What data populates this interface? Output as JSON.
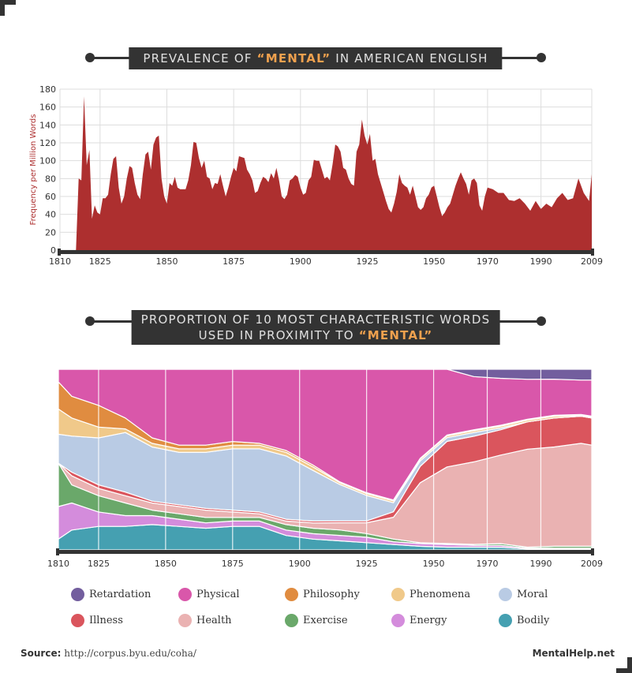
{
  "colors": {
    "dark": "#333333",
    "accent": "#f0a14e",
    "line_area": "#ad2f2f",
    "grid": "#dddddd"
  },
  "chart_data": [
    {
      "type": "area",
      "title_prefix": "PREVALENCE OF ",
      "title_highlight": "“MENTAL”",
      "title_suffix": " IN AMERICAN ENGLISH",
      "ylabel": "Frequency per Million Words",
      "xlim": [
        1810,
        2009
      ],
      "ylim": [
        0,
        180
      ],
      "y_ticks": [
        0,
        20,
        40,
        60,
        80,
        100,
        120,
        140,
        160,
        180
      ],
      "x_ticks": [
        1810,
        1825,
        1850,
        1875,
        1900,
        1925,
        1950,
        1970,
        1990,
        2009
      ],
      "grid": true,
      "x": [
        1810,
        1812,
        1814,
        1816,
        1817,
        1818,
        1819,
        1820,
        1821,
        1822,
        1823,
        1824,
        1825,
        1826,
        1827,
        1828,
        1829,
        1830,
        1831,
        1832,
        1833,
        1834,
        1835,
        1836,
        1837,
        1838,
        1839,
        1840,
        1841,
        1842,
        1843,
        1844,
        1845,
        1846,
        1847,
        1848,
        1849,
        1850,
        1851,
        1852,
        1853,
        1854,
        1855,
        1856,
        1857,
        1858,
        1859,
        1860,
        1861,
        1862,
        1863,
        1864,
        1865,
        1866,
        1867,
        1868,
        1869,
        1870,
        1871,
        1872,
        1873,
        1874,
        1875,
        1876,
        1877,
        1878,
        1879,
        1880,
        1881,
        1882,
        1883,
        1884,
        1885,
        1886,
        1887,
        1888,
        1889,
        1890,
        1891,
        1892,
        1893,
        1894,
        1895,
        1896,
        1897,
        1898,
        1899,
        1900,
        1901,
        1902,
        1903,
        1904,
        1905,
        1906,
        1907,
        1908,
        1909,
        1910,
        1911,
        1912,
        1913,
        1914,
        1915,
        1916,
        1917,
        1918,
        1919,
        1920,
        1921,
        1922,
        1923,
        1924,
        1925,
        1926,
        1927,
        1928,
        1929,
        1930,
        1931,
        1932,
        1933,
        1934,
        1935,
        1936,
        1937,
        1938,
        1939,
        1940,
        1941,
        1942,
        1943,
        1944,
        1945,
        1946,
        1947,
        1948,
        1949,
        1950,
        1951,
        1952,
        1953,
        1954,
        1955,
        1956,
        1957,
        1958,
        1959,
        1960,
        1961,
        1962,
        1963,
        1964,
        1965,
        1966,
        1967,
        1968,
        1969,
        1970,
        1972,
        1974,
        1976,
        1978,
        1980,
        1982,
        1984,
        1986,
        1988,
        1990,
        1992,
        1994,
        1996,
        1998,
        2000,
        2002,
        2004,
        2006,
        2008,
        2009
      ],
      "values": [
        0,
        0,
        0,
        0,
        80,
        78,
        172,
        95,
        112,
        35,
        50,
        42,
        40,
        58,
        58,
        62,
        85,
        102,
        105,
        70,
        52,
        60,
        80,
        94,
        92,
        75,
        62,
        57,
        85,
        107,
        110,
        90,
        118,
        126,
        128,
        80,
        60,
        52,
        75,
        72,
        82,
        70,
        68,
        68,
        68,
        78,
        95,
        121,
        120,
        103,
        92,
        100,
        82,
        80,
        68,
        75,
        74,
        85,
        72,
        60,
        70,
        82,
        92,
        88,
        105,
        104,
        103,
        90,
        85,
        78,
        64,
        66,
        75,
        82,
        80,
        76,
        86,
        80,
        92,
        78,
        60,
        57,
        62,
        78,
        80,
        84,
        82,
        70,
        62,
        64,
        78,
        82,
        101,
        100,
        100,
        90,
        80,
        82,
        78,
        96,
        118,
        116,
        110,
        92,
        90,
        80,
        74,
        72,
        110,
        118,
        146,
        128,
        118,
        130,
        100,
        102,
        85,
        75,
        65,
        55,
        46,
        42,
        52,
        65,
        85,
        75,
        72,
        70,
        62,
        72,
        60,
        48,
        45,
        48,
        58,
        62,
        70,
        72,
        60,
        48,
        38,
        42,
        48,
        52,
        62,
        72,
        80,
        87,
        80,
        74,
        62,
        78,
        80,
        75,
        50,
        44,
        60,
        70,
        68,
        64,
        64,
        56,
        55,
        58,
        52,
        44,
        55,
        46,
        52,
        48,
        58,
        64,
        56,
        58,
        80,
        64,
        55,
        85
      ]
    },
    {
      "type": "area",
      "stacked": "percent",
      "title_line1": "PROPORTION OF 10 MOST CHARACTERISTIC WORDS",
      "title_line2_prefix": "USED IN PROXIMITY TO ",
      "title_line2_highlight": "“MENTAL”",
      "xlim": [
        1810,
        2009
      ],
      "ylim": [
        0,
        100
      ],
      "x_ticks": [
        1810,
        1825,
        1850,
        1875,
        1900,
        1925,
        1950,
        1970,
        1990,
        2009
      ],
      "grid": true,
      "legend": "bottom",
      "x": [
        1810,
        1815,
        1825,
        1835,
        1845,
        1855,
        1865,
        1875,
        1885,
        1895,
        1905,
        1915,
        1925,
        1935,
        1945,
        1955,
        1965,
        1975,
        1985,
        1995,
        2005,
        2009
      ],
      "series": [
        {
          "name": "Bodily",
          "color": "#45a0b1",
          "values": [
            6,
            11,
            13,
            13,
            14,
            13,
            12,
            13,
            13,
            8,
            6,
            5,
            4,
            3,
            2,
            1.5,
            1.5,
            1.5,
            0.5,
            0.5,
            0.5,
            0.5
          ]
        },
        {
          "name": "Energy",
          "color": "#d48cdc",
          "values": [
            18,
            15,
            8,
            6,
            5,
            4,
            3,
            3,
            3,
            3,
            3,
            3,
            3,
            1.5,
            1.5,
            1.5,
            1,
            1,
            0.5,
            0.5,
            0.5,
            0.5
          ]
        },
        {
          "name": "Exercise",
          "color": "#6aa86a",
          "values": [
            24,
            10,
            9,
            7,
            3,
            3,
            3,
            2,
            2,
            3,
            3,
            3,
            2,
            1.5,
            0.5,
            0.5,
            0.5,
            1,
            0.5,
            1,
            1,
            1
          ]
        },
        {
          "name": "Health",
          "color": "#eab2b2",
          "values": [
            0,
            5,
            4,
            4,
            4,
            4,
            4,
            3,
            2,
            2,
            3,
            4,
            6,
            12,
            33,
            42,
            45,
            49,
            54,
            55,
            57,
            56
          ]
        },
        {
          "name": "Illness",
          "color": "#da555d",
          "values": [
            0,
            2,
            2,
            2,
            1,
            1,
            1,
            1,
            1,
            1,
            1,
            1,
            1,
            3,
            9,
            14,
            14,
            14,
            15,
            16,
            15,
            15
          ]
        },
        {
          "name": "Moral",
          "color": "#b9cbe4",
          "values": [
            16,
            20,
            26,
            33,
            30,
            29,
            31,
            34,
            35,
            35,
            28,
            20,
            14,
            5,
            3,
            2,
            2,
            1,
            0,
            0,
            0,
            0
          ]
        },
        {
          "name": "Phenomena",
          "color": "#f0c98a",
          "values": [
            14,
            10,
            6,
            2,
            2,
            2,
            2,
            2,
            2,
            2,
            2,
            1,
            1,
            1,
            1,
            1,
            1,
            1,
            1,
            1,
            0.5,
            0.5
          ]
        },
        {
          "name": "Philosophy",
          "color": "#e08c40",
          "values": [
            15,
            12,
            12,
            6,
            3,
            2,
            2,
            2,
            1,
            1,
            1,
            0.5,
            0.5,
            0.5,
            0.5,
            0.5,
            0.5,
            0.5,
            0.5,
            0.5,
            0.5,
            0.5
          ]
        },
        {
          "name": "Physical",
          "color": "#d957aa",
          "values": [
            7,
            15,
            20,
            27,
            38,
            42,
            42,
            40,
            41,
            45,
            53,
            62,
            68,
            72,
            49,
            36,
            29,
            26,
            22,
            20,
            19,
            20
          ]
        },
        {
          "name": "Retardation",
          "color": "#735e9e",
          "values": [
            0,
            0,
            0,
            0,
            0,
            0,
            0,
            0,
            0,
            0,
            0,
            0,
            0,
            0,
            0,
            0,
            4,
            5,
            5.5,
            5.5,
            6,
            6
          ]
        }
      ]
    }
  ],
  "legend": [
    {
      "name": "Retardation",
      "color": "#735e9e"
    },
    {
      "name": "Physical",
      "color": "#d957aa"
    },
    {
      "name": "Philosophy",
      "color": "#e08c40"
    },
    {
      "name": "Phenomena",
      "color": "#f0c98a"
    },
    {
      "name": "Moral",
      "color": "#b9cbe4"
    },
    {
      "name": "Illness",
      "color": "#da555d"
    },
    {
      "name": "Health",
      "color": "#eab2b2"
    },
    {
      "name": "Exercise",
      "color": "#6aa86a"
    },
    {
      "name": "Energy",
      "color": "#d48cdc"
    },
    {
      "name": "Bodily",
      "color": "#45a0b1"
    }
  ],
  "footer": {
    "source_label": "Source:",
    "source_url": "http://corpus.byu.edu/coha/",
    "brand": "MentalHelp.net"
  }
}
